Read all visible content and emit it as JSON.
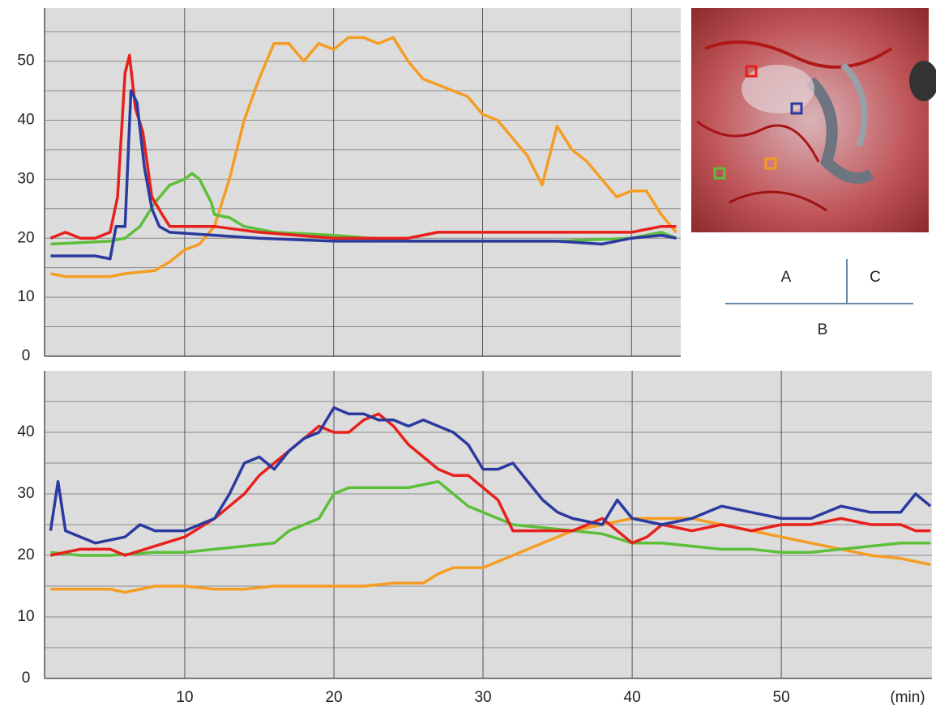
{
  "chart_data": [
    {
      "type": "line",
      "xlim": [
        0.6,
        43.3
      ],
      "ylim": [
        0,
        59
      ],
      "xticks": [
        10,
        20,
        30,
        40
      ],
      "show_xtick_labels": false,
      "yticks": [
        0,
        10,
        20,
        30,
        40,
        50
      ],
      "minor_yticks": [
        5,
        15,
        25,
        35,
        45,
        55
      ],
      "grid": true,
      "series": [
        {
          "color": "#f59d22",
          "x": [
            1,
            2,
            4,
            5,
            6,
            8,
            9,
            10,
            11,
            12,
            13,
            14,
            15,
            16,
            17,
            18,
            19,
            20,
            21,
            22,
            23,
            24,
            25,
            26,
            27,
            28,
            29,
            30,
            31,
            32,
            33,
            34,
            35,
            36,
            37,
            38,
            39,
            40,
            41,
            42,
            43
          ],
          "values": [
            14,
            13.5,
            13.5,
            13.5,
            14,
            14.5,
            16,
            18,
            19,
            22,
            30,
            40,
            47,
            53,
            53,
            50,
            53,
            52,
            54,
            54,
            53,
            54,
            50,
            47,
            46,
            45,
            44,
            41,
            40,
            37,
            34,
            29,
            39,
            35,
            33,
            30,
            27,
            28,
            28,
            24,
            21
          ]
        },
        {
          "color": "#5cbf3a",
          "x": [
            1,
            5,
            6,
            7,
            8,
            9,
            10,
            10.5,
            11,
            11.8,
            12,
            13,
            14,
            16,
            20,
            25,
            30,
            35,
            40,
            42,
            43
          ],
          "values": [
            19,
            19.5,
            20,
            22,
            26,
            29,
            30,
            31,
            30,
            26,
            24,
            23.5,
            22,
            21,
            20.5,
            19.5,
            19.5,
            19.5,
            20,
            21,
            20
          ]
        },
        {
          "color": "#e8201c",
          "x": [
            1,
            2,
            3,
            4,
            5,
            5.5,
            6,
            6.3,
            6.7,
            7.2,
            7.8,
            8.5,
            9,
            12,
            15,
            20,
            25,
            27,
            30,
            35,
            40,
            42,
            43
          ],
          "values": [
            20,
            21,
            20,
            20,
            21,
            27,
            48,
            51,
            42,
            38,
            27,
            24,
            22,
            22,
            21,
            20,
            20,
            21,
            21,
            21,
            21,
            22,
            22
          ]
        },
        {
          "color": "#2b3a9f",
          "x": [
            1,
            4,
            5,
            5.4,
            6,
            6.4,
            6.8,
            7.3,
            7.8,
            8.3,
            9,
            12,
            15,
            20,
            25,
            30,
            35,
            38,
            40,
            42,
            43
          ],
          "values": [
            17,
            17,
            16.5,
            22,
            22,
            45,
            43,
            32,
            25,
            22,
            21,
            20.5,
            20,
            19.5,
            19.5,
            19.5,
            19.5,
            19,
            20,
            20.5,
            20
          ]
        }
      ]
    },
    {
      "type": "line",
      "xlim": [
        0.6,
        60.1
      ],
      "ylim": [
        0,
        50
      ],
      "xticks": [
        10,
        20,
        30,
        40,
        50
      ],
      "show_xtick_labels": true,
      "x_label": "(min)",
      "yticks": [
        0,
        10,
        20,
        30,
        40
      ],
      "minor_yticks": [
        5,
        15,
        25,
        35,
        45
      ],
      "grid": true,
      "series": [
        {
          "color": "#f59d22",
          "x": [
            1,
            3,
            5,
            6,
            8,
            10,
            12,
            14,
            16,
            18,
            20,
            22,
            24,
            26,
            27,
            28,
            30,
            31,
            32,
            34,
            36,
            38,
            40,
            42,
            44,
            46,
            48,
            50,
            52,
            54,
            56,
            58,
            60
          ],
          "values": [
            14.5,
            14.5,
            14.5,
            14,
            15,
            15,
            14.5,
            14.5,
            15,
            15,
            15,
            15,
            15.5,
            15.5,
            17,
            18,
            18,
            19,
            20,
            22,
            24,
            25,
            26,
            26,
            26,
            25,
            24,
            23,
            22,
            21,
            20,
            19.5,
            18.5
          ]
        },
        {
          "color": "#5cbf3a",
          "x": [
            1,
            3,
            5,
            8,
            10,
            12,
            14,
            16,
            17,
            18,
            19,
            20,
            21,
            23,
            25,
            27,
            28,
            29,
            30,
            31,
            32,
            34,
            36,
            38,
            40,
            42,
            44,
            46,
            48,
            50,
            52,
            54,
            56,
            58,
            60
          ],
          "values": [
            20.5,
            20,
            20,
            20.5,
            20.5,
            21,
            21.5,
            22,
            24,
            25,
            26,
            30,
            31,
            31,
            31,
            32,
            30,
            28,
            27,
            26,
            25,
            24.5,
            24,
            23.5,
            22,
            22,
            21.5,
            21,
            21,
            20.5,
            20.5,
            21,
            21.5,
            22,
            22
          ]
        },
        {
          "color": "#e8201c",
          "x": [
            1,
            3,
            5,
            6,
            8,
            10,
            12,
            13,
            14,
            15,
            16,
            17,
            18,
            19,
            20,
            21,
            22,
            23,
            24,
            25,
            26,
            27,
            28,
            29,
            30,
            31,
            32,
            34,
            36,
            38,
            39,
            40,
            41,
            42,
            44,
            46,
            48,
            50,
            52,
            54,
            56,
            58,
            59,
            60
          ],
          "values": [
            20,
            21,
            21,
            20,
            21.5,
            23,
            26,
            28,
            30,
            33,
            35,
            37,
            39,
            41,
            40,
            40,
            42,
            43,
            41,
            38,
            36,
            34,
            33,
            33,
            31,
            29,
            24,
            24,
            24,
            26,
            24,
            22,
            23,
            25,
            24,
            25,
            24,
            25,
            25,
            26,
            25,
            25,
            24,
            24
          ]
        },
        {
          "color": "#2b3a9f",
          "x": [
            1,
            1.5,
            2,
            3,
            4,
            6,
            7,
            8,
            10,
            11,
            12,
            13,
            14,
            15,
            16,
            17,
            18,
            19,
            20,
            21,
            22,
            23,
            24,
            25,
            26,
            27,
            28,
            29,
            30,
            31,
            32,
            33,
            34,
            35,
            36,
            38,
            39,
            40,
            42,
            44,
            45,
            46,
            48,
            50,
            52,
            54,
            56,
            58,
            59,
            60
          ],
          "values": [
            24,
            32,
            24,
            23,
            22,
            23,
            25,
            24,
            24,
            25,
            26,
            30,
            35,
            36,
            34,
            37,
            39,
            40,
            44,
            43,
            43,
            42,
            42,
            41,
            42,
            41,
            40,
            38,
            34,
            34,
            35,
            32,
            29,
            27,
            26,
            25,
            29,
            26,
            25,
            26,
            27,
            28,
            27,
            26,
            26,
            28,
            27,
            27,
            30,
            28
          ]
        }
      ]
    }
  ],
  "diagram": {
    "labels": [
      "A",
      "C",
      "B"
    ]
  }
}
